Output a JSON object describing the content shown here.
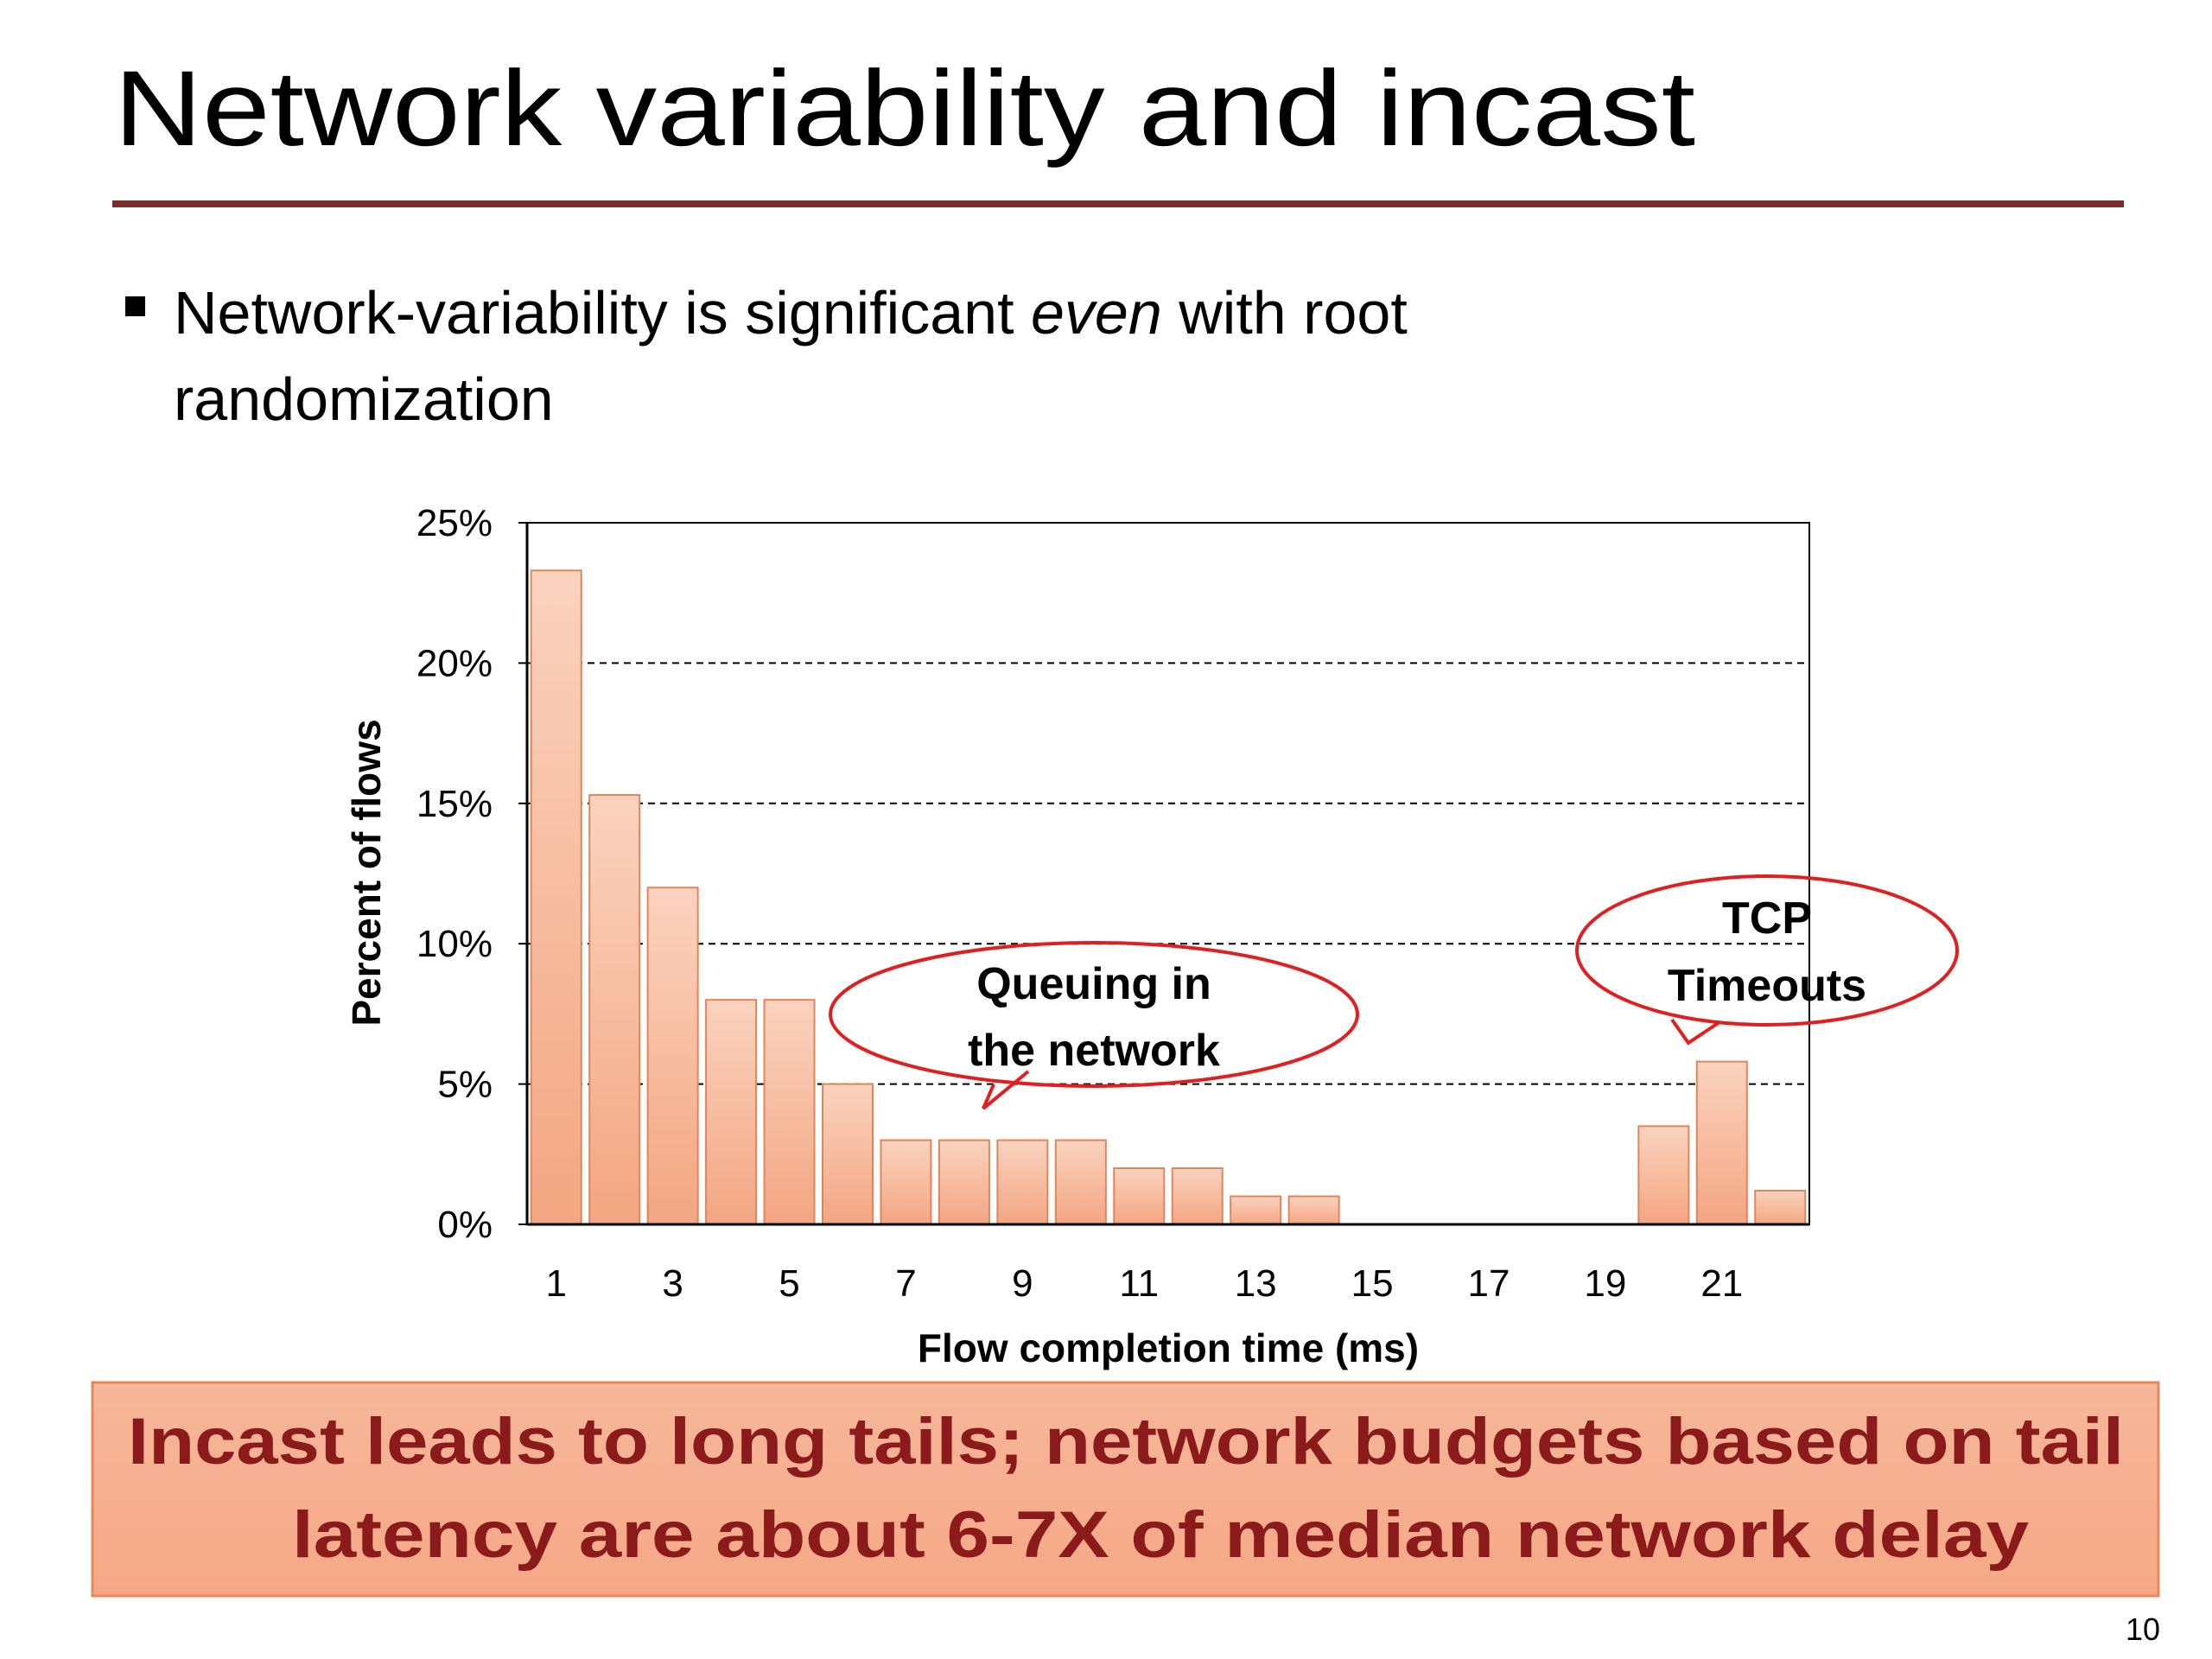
{
  "title": "Network variability and incast",
  "bullet": [
    "Network-variability is significant ",
    "even",
    " with root",
    "randomization"
  ],
  "chart_data": {
    "type": "bar",
    "categories": [
      1,
      null,
      3,
      null,
      5,
      null,
      7,
      null,
      9,
      null,
      11,
      null,
      13,
      null,
      15,
      null,
      17,
      null,
      19,
      null,
      21,
      null
    ],
    "values": [
      23.3,
      15.3,
      12,
      8,
      8,
      5,
      3,
      3,
      3,
      3,
      2,
      2,
      1,
      1,
      0,
      0,
      0,
      0,
      0,
      3.5,
      5.8,
      1.2
    ],
    "color": "#f4b08c",
    "ylim": [
      0,
      25
    ],
    "yticks": [
      {
        "value": 0,
        "label": "0%"
      },
      {
        "value": 5,
        "label": "5%"
      },
      {
        "value": 10,
        "label": "10%"
      },
      {
        "value": 15,
        "label": "15%"
      },
      {
        "value": 20,
        "label": "20%"
      },
      {
        "value": 25,
        "label": "25%"
      }
    ],
    "grid": true,
    "x_label": "Flow completion time (ms)",
    "y_label": "Percent of flows"
  },
  "callouts": [
    {
      "lines": [
        "Queuing in",
        "the network"
      ]
    },
    {
      "lines": [
        "TCP",
        "Timeouts"
      ]
    }
  ],
  "conclusion": [
    "Incast leads to long tails; network budgets based on tail",
    "latency are about 6-7X of median network delay"
  ],
  "page_number": "10"
}
